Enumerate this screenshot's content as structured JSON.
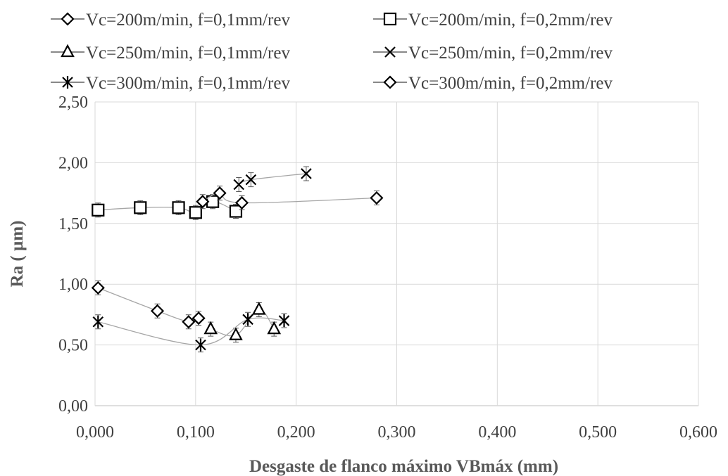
{
  "chart_data": {
    "type": "scatter",
    "title": "",
    "xlabel": "Desgaste de flanco máximo VBmáx (mm)",
    "ylabel": "Ra ( µm)",
    "xlim": [
      0,
      0.6
    ],
    "ylim": [
      0,
      2.5
    ],
    "x_ticks": [
      "0,000",
      "0,100",
      "0,200",
      "0,300",
      "0,400",
      "0,500",
      "0,600"
    ],
    "y_ticks": [
      "0,00",
      "0,50",
      "1,00",
      "1,50",
      "2,00",
      "2,50"
    ],
    "grid": true,
    "legend_position": "top",
    "series": [
      {
        "name": "Vc=200m/min, f=0,1mm/rev",
        "marker": "diamond",
        "x": [
          0.003,
          0.062,
          0.093,
          0.103
        ],
        "y": [
          0.97,
          0.78,
          0.69,
          0.72
        ]
      },
      {
        "name": "Vc=200m/min, f=0,2mm/rev",
        "marker": "square",
        "x": [
          0.003,
          0.045,
          0.083,
          0.1,
          0.117,
          0.14
        ],
        "y": [
          1.61,
          1.63,
          1.63,
          1.59,
          1.68,
          1.6
        ]
      },
      {
        "name": "Vc=250m/min, f=0,1mm/rev",
        "marker": "triangle",
        "x": [
          0.115,
          0.14,
          0.163,
          0.178
        ],
        "y": [
          0.63,
          0.58,
          0.79,
          0.63
        ]
      },
      {
        "name": "Vc=250m/min, f=0,2mm/rev",
        "marker": "x",
        "x": [
          0.143,
          0.155,
          0.21
        ],
        "y": [
          1.82,
          1.86,
          1.91
        ]
      },
      {
        "name": "Vc=300m/min, f=0,1mm/rev",
        "marker": "asterisk",
        "x": [
          0.003,
          0.105,
          0.152,
          0.188
        ],
        "y": [
          0.69,
          0.5,
          0.71,
          0.7
        ]
      },
      {
        "name": "Vc=300m/min, f=0,2mm/rev",
        "marker": "diamond",
        "x": [
          0.107,
          0.124,
          0.146,
          0.28
        ],
        "y": [
          1.68,
          1.75,
          1.67,
          1.71
        ]
      }
    ]
  }
}
